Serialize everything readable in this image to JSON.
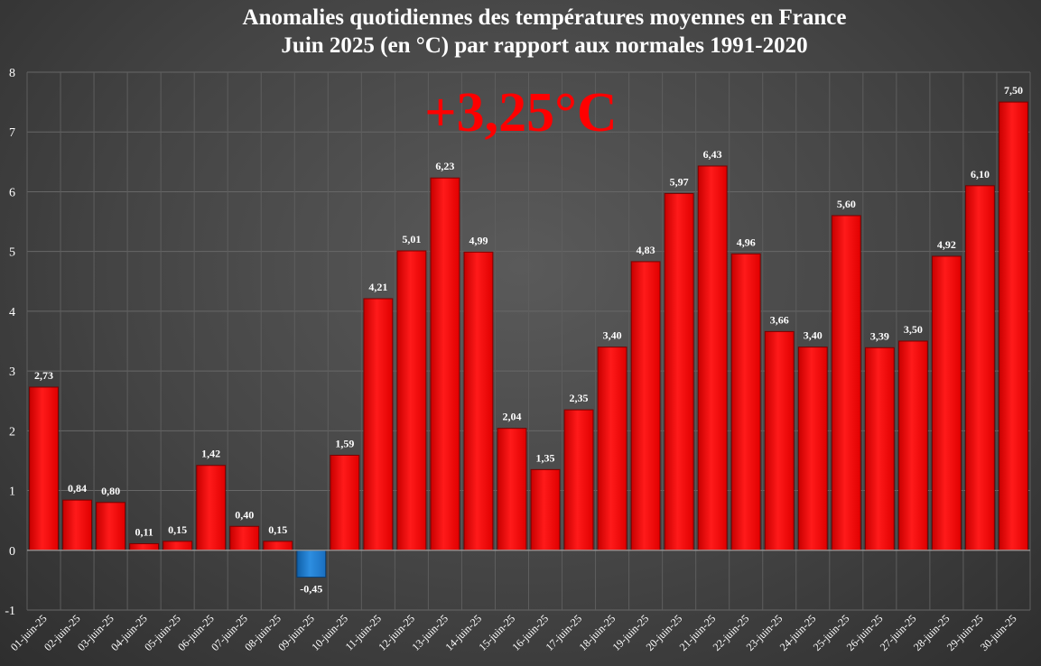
{
  "title": {
    "line1": "Anomalies quotidiennes des températures moyennes en France",
    "line2": "Juin 2025 (en °C) par rapport aux normales 1991-2020"
  },
  "annotation": "+3,25°C",
  "colors": {
    "positive": "#ff0000",
    "negative": "#1f7fd4",
    "background": "#474747",
    "grid": "#6a6a6a",
    "text": "#ffffff"
  },
  "chart_data": {
    "type": "bar",
    "title": "Anomalies quotidiennes des températures moyennes en France Juin 2025 (en °C) par rapport aux normales 1991-2020",
    "xlabel": "",
    "ylabel": "",
    "ylim": [
      -1,
      8
    ],
    "yticks": [
      "-1",
      "0",
      "1",
      "2",
      "3",
      "4",
      "5",
      "6",
      "7",
      "8"
    ],
    "grid": true,
    "legend": "none",
    "categories": [
      "01-juin-25",
      "02-juin-25",
      "03-juin-25",
      "04-juin-25",
      "05-juin-25",
      "06-juin-25",
      "07-juin-25",
      "08-juin-25",
      "09-juin-25",
      "10-juin-25",
      "11-juin-25",
      "12-juin-25",
      "13-juin-25",
      "14-juin-25",
      "15-juin-25",
      "16-juin-25",
      "17-juin-25",
      "18-juin-25",
      "19-juin-25",
      "20-juin-25",
      "21-juin-25",
      "22-juin-25",
      "23-juin-25",
      "24-juin-25",
      "25-juin-25",
      "26-juin-25",
      "27-juin-25",
      "28-juin-25",
      "29-juin-25",
      "30-juin-25"
    ],
    "values": [
      2.73,
      0.84,
      0.8,
      0.11,
      0.15,
      1.42,
      0.4,
      0.15,
      -0.45,
      1.59,
      4.21,
      5.01,
      6.23,
      4.99,
      2.04,
      1.35,
      2.35,
      3.4,
      4.83,
      5.97,
      6.43,
      4.96,
      3.66,
      3.4,
      5.6,
      3.39,
      3.5,
      4.92,
      6.1,
      7.5
    ],
    "labels": [
      "2,73",
      "0,84",
      "0,80",
      "0,11",
      "0,15",
      "1,42",
      "0,40",
      "0,15",
      "-0,45",
      "1,59",
      "4,21",
      "5,01",
      "6,23",
      "4,99",
      "2,04",
      "1,35",
      "2,35",
      "3,40",
      "4,83",
      "5,97",
      "6,43",
      "4,96",
      "3,66",
      "3,40",
      "5,60",
      "3,39",
      "3,50",
      "4,92",
      "6,10",
      "7,50"
    ]
  }
}
